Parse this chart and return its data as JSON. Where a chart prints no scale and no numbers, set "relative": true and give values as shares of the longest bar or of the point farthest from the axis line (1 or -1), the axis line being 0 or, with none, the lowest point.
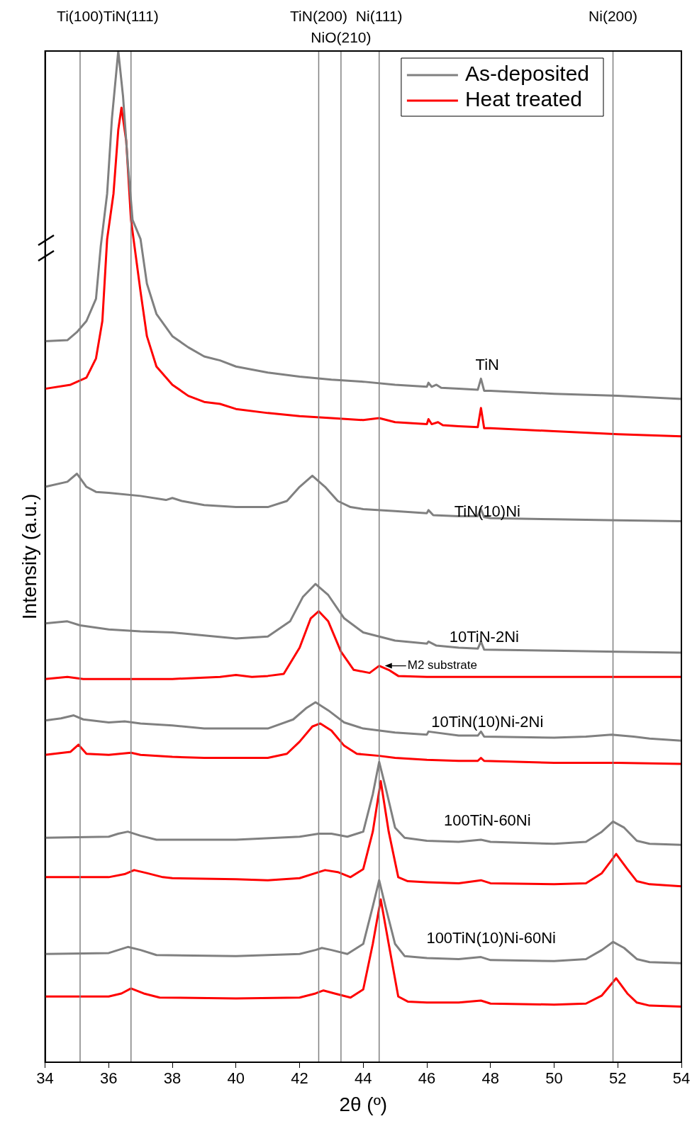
{
  "chart_data": {
    "type": "line",
    "relative": true,
    "xlabel": "2θ (º)",
    "ylabel": "Intensity (a.u.)",
    "xlim": [
      34,
      54
    ],
    "xticks": [
      34,
      36,
      38,
      40,
      42,
      44,
      46,
      48,
      50,
      52,
      54
    ],
    "legend": "top right",
    "marker": "none",
    "line_style": "solid",
    "series": [
      {
        "name": "As-deposited",
        "color": "#808080",
        "x": [
          34,
          34.7,
          35.0,
          35.3,
          35.6,
          35.75,
          35.95,
          36.1,
          36.3,
          36.45,
          36.6,
          36.75,
          37.0,
          37.2,
          37.5,
          38,
          38.5,
          39,
          39.5,
          40,
          41,
          42,
          43,
          44,
          45,
          46,
          46.05,
          46.15,
          46.3,
          46.45,
          47,
          47.6,
          47.7,
          47.8,
          48,
          50,
          52,
          54
        ],
        "values": [
          0.713,
          0.714,
          0.722,
          0.733,
          0.755,
          0.807,
          0.859,
          0.933,
          1.0,
          0.955,
          0.889,
          0.833,
          0.814,
          0.77,
          0.74,
          0.718,
          0.707,
          0.698,
          0.694,
          0.688,
          0.682,
          0.678,
          0.675,
          0.673,
          0.67,
          0.668,
          0.672,
          0.668,
          0.67,
          0.667,
          0.666,
          0.665,
          0.676,
          0.664,
          0.664,
          0.661,
          0.659,
          0.656
        ]
      },
      {
        "name": "Heat treated",
        "color": "#ff0000",
        "x": [
          34,
          34.8,
          35.3,
          35.6,
          35.8,
          35.95,
          36.15,
          36.3,
          36.4,
          36.55,
          36.7,
          37.0,
          37.2,
          37.5,
          38,
          38.5,
          39,
          39.5,
          40,
          41,
          42,
          43,
          44,
          44.5,
          45,
          46,
          46.05,
          46.15,
          46.35,
          46.5,
          47,
          47.6,
          47.7,
          47.8,
          48,
          50,
          52,
          54
        ],
        "values": [
          0.666,
          0.67,
          0.677,
          0.696,
          0.733,
          0.814,
          0.859,
          0.922,
          0.944,
          0.911,
          0.833,
          0.762,
          0.718,
          0.688,
          0.67,
          0.659,
          0.653,
          0.651,
          0.646,
          0.642,
          0.639,
          0.637,
          0.635,
          0.637,
          0.633,
          0.631,
          0.636,
          0.631,
          0.633,
          0.63,
          0.629,
          0.628,
          0.647,
          0.627,
          0.627,
          0.624,
          0.621,
          0.619
        ]
      },
      {
        "color": "#808080",
        "x": [
          34,
          34.7,
          35.0,
          35.3,
          35.6,
          36,
          37,
          37.8,
          38.0,
          38.3,
          39,
          40,
          41,
          41.6,
          42.0,
          42.4,
          42.8,
          43.2,
          43.6,
          44,
          45,
          46,
          46.05,
          46.2,
          47,
          47.6,
          47.7,
          47.8,
          48,
          50,
          52,
          54
        ],
        "values": [
          0.569,
          0.574,
          0.582,
          0.569,
          0.564,
          0.563,
          0.56,
          0.556,
          0.558,
          0.555,
          0.551,
          0.549,
          0.549,
          0.555,
          0.569,
          0.58,
          0.569,
          0.555,
          0.549,
          0.547,
          0.545,
          0.543,
          0.546,
          0.541,
          0.54,
          0.54,
          0.547,
          0.539,
          0.538,
          0.537,
          0.536,
          0.535
        ]
      },
      {
        "color": "#808080",
        "x": [
          34,
          34.7,
          35.1,
          36,
          37,
          38,
          39,
          40,
          41,
          41.7,
          42.1,
          42.5,
          42.9,
          43.4,
          44,
          45,
          46,
          46.05,
          46.3,
          47,
          47.6,
          47.7,
          47.8,
          50,
          52,
          54
        ],
        "values": [
          0.434,
          0.436,
          0.432,
          0.428,
          0.426,
          0.425,
          0.422,
          0.419,
          0.421,
          0.436,
          0.46,
          0.473,
          0.462,
          0.439,
          0.425,
          0.417,
          0.414,
          0.416,
          0.412,
          0.41,
          0.409,
          0.416,
          0.408,
          0.407,
          0.406,
          0.405
        ]
      },
      {
        "color": "#ff0000",
        "x": [
          34,
          34.7,
          35.2,
          36,
          38,
          39.5,
          40,
          40.5,
          41,
          41.5,
          42.0,
          42.35,
          42.6,
          42.9,
          43.3,
          43.7,
          44.2,
          44.5,
          44.8,
          45.1,
          46,
          48,
          50,
          52,
          54
        ],
        "values": [
          0.379,
          0.381,
          0.379,
          0.379,
          0.379,
          0.381,
          0.383,
          0.381,
          0.382,
          0.384,
          0.41,
          0.439,
          0.446,
          0.436,
          0.406,
          0.388,
          0.385,
          0.392,
          0.388,
          0.382,
          0.381,
          0.381,
          0.381,
          0.381,
          0.381
        ]
      },
      {
        "color": "#808080",
        "x": [
          34,
          34.5,
          34.9,
          35.2,
          36,
          36.5,
          37,
          38,
          39,
          40,
          41,
          41.8,
          42.2,
          42.5,
          42.9,
          43.4,
          44,
          45,
          46,
          46.05,
          47,
          47.6,
          47.7,
          47.8,
          50,
          51,
          51.8,
          52.5,
          53,
          54
        ],
        "values": [
          0.338,
          0.34,
          0.343,
          0.339,
          0.336,
          0.337,
          0.335,
          0.333,
          0.33,
          0.33,
          0.33,
          0.339,
          0.35,
          0.356,
          0.348,
          0.336,
          0.33,
          0.326,
          0.324,
          0.327,
          0.323,
          0.323,
          0.327,
          0.322,
          0.321,
          0.322,
          0.324,
          0.322,
          0.32,
          0.318
        ]
      },
      {
        "color": "#ff0000",
        "x": [
          34,
          34.8,
          35.05,
          35.3,
          36,
          36.7,
          37,
          38,
          39,
          40,
          41,
          41.6,
          42.0,
          42.4,
          42.65,
          43.0,
          43.4,
          43.8,
          44.5,
          45,
          46,
          47,
          47.6,
          47.7,
          47.8,
          50,
          52,
          54
        ],
        "values": [
          0.304,
          0.307,
          0.314,
          0.305,
          0.304,
          0.306,
          0.304,
          0.302,
          0.301,
          0.301,
          0.301,
          0.305,
          0.317,
          0.332,
          0.335,
          0.328,
          0.313,
          0.305,
          0.303,
          0.301,
          0.299,
          0.298,
          0.298,
          0.301,
          0.298,
          0.296,
          0.296,
          0.295
        ]
      },
      {
        "color": "#808080",
        "x": [
          34,
          36,
          36.3,
          36.6,
          37,
          37.5,
          40,
          42,
          42.6,
          43,
          43.5,
          44.0,
          44.3,
          44.5,
          44.7,
          45.0,
          45.3,
          46,
          47,
          47.7,
          48,
          50,
          51,
          51.5,
          51.85,
          52.2,
          52.6,
          53,
          54
        ],
        "values": [
          0.222,
          0.223,
          0.226,
          0.228,
          0.224,
          0.22,
          0.22,
          0.223,
          0.226,
          0.226,
          0.223,
          0.228,
          0.265,
          0.297,
          0.272,
          0.232,
          0.222,
          0.219,
          0.218,
          0.22,
          0.218,
          0.216,
          0.218,
          0.228,
          0.238,
          0.232,
          0.219,
          0.216,
          0.215
        ]
      },
      {
        "color": "#ff0000",
        "x": [
          34,
          36,
          36.5,
          36.8,
          37.2,
          37.7,
          38,
          40,
          41,
          42,
          42.5,
          42.8,
          43.2,
          43.6,
          44.0,
          44.3,
          44.55,
          44.8,
          45.1,
          45.4,
          46,
          47,
          47.7,
          48,
          50,
          51,
          51.5,
          51.95,
          52.3,
          52.6,
          53,
          54
        ],
        "values": [
          0.183,
          0.183,
          0.186,
          0.19,
          0.187,
          0.183,
          0.182,
          0.181,
          0.18,
          0.182,
          0.187,
          0.19,
          0.188,
          0.183,
          0.191,
          0.228,
          0.278,
          0.228,
          0.183,
          0.179,
          0.178,
          0.177,
          0.18,
          0.177,
          0.176,
          0.177,
          0.187,
          0.206,
          0.191,
          0.179,
          0.176,
          0.174
        ]
      },
      {
        "color": "#808080",
        "x": [
          34,
          36,
          36.3,
          36.6,
          37,
          37.5,
          40,
          42,
          42.5,
          42.7,
          43,
          43.5,
          44.0,
          44.3,
          44.5,
          44.7,
          45.0,
          45.3,
          46,
          47,
          47.7,
          48,
          50,
          51,
          51.5,
          51.85,
          52.2,
          52.6,
          53,
          54
        ],
        "values": [
          0.107,
          0.108,
          0.111,
          0.114,
          0.111,
          0.106,
          0.105,
          0.107,
          0.111,
          0.113,
          0.111,
          0.107,
          0.117,
          0.154,
          0.18,
          0.154,
          0.117,
          0.105,
          0.103,
          0.102,
          0.104,
          0.101,
          0.1,
          0.102,
          0.111,
          0.119,
          0.113,
          0.102,
          0.099,
          0.098
        ]
      },
      {
        "color": "#ff0000",
        "x": [
          34,
          36,
          36.4,
          36.7,
          37.1,
          37.6,
          40,
          42,
          42.5,
          42.75,
          43.1,
          43.6,
          44.0,
          44.3,
          44.55,
          44.8,
          45.1,
          45.4,
          46,
          47,
          47.7,
          48,
          50,
          51,
          51.5,
          51.95,
          52.3,
          52.6,
          53,
          54
        ],
        "values": [
          0.065,
          0.065,
          0.068,
          0.073,
          0.068,
          0.064,
          0.063,
          0.064,
          0.068,
          0.071,
          0.068,
          0.064,
          0.072,
          0.117,
          0.161,
          0.117,
          0.065,
          0.06,
          0.059,
          0.059,
          0.061,
          0.058,
          0.057,
          0.058,
          0.066,
          0.083,
          0.068,
          0.059,
          0.056,
          0.055
        ]
      }
    ],
    "ref_lines": [
      {
        "axis": "x",
        "value": 35.1,
        "label": "Ti(100)",
        "color": "#808080"
      },
      {
        "axis": "x",
        "value": 36.7,
        "label": "TiN(111)",
        "color": "#808080"
      },
      {
        "axis": "x",
        "value": 42.6,
        "label": "TiN(200)",
        "color": "#808080"
      },
      {
        "axis": "x",
        "value": 43.3,
        "label": "NiO(210)",
        "color": "#808080"
      },
      {
        "axis": "x",
        "value": 44.5,
        "label": "Ni(111)",
        "color": "#808080"
      },
      {
        "axis": "x",
        "value": 51.85,
        "label": "Ni(200)",
        "color": "#808080"
      }
    ],
    "annotations": [
      "TiN",
      "TiN(10)Ni",
      "10TiN-2Ni",
      {
        "text": "M2 substrate",
        "x": 44.5,
        "y": 0.392
      },
      "10TiN(10)Ni-2Ni",
      "100TiN-60Ni",
      "100TiN(10)Ni-60Ni"
    ]
  }
}
